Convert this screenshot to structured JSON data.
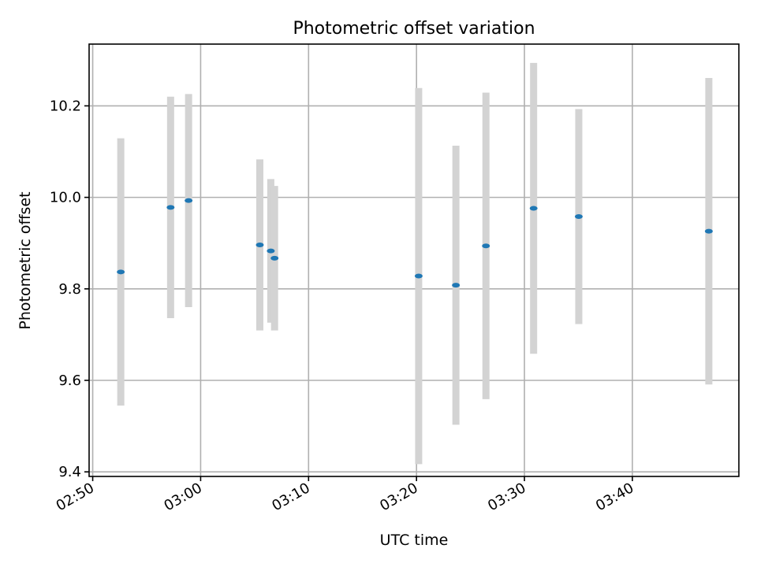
{
  "chart_data": {
    "type": "scatter",
    "title": "Photometric offset variation",
    "xlabel": "UTC time",
    "ylabel": "Photometric offset",
    "ylim": [
      9.39,
      10.335
    ],
    "xlim": [
      "02:49:40",
      "03:49:52"
    ],
    "grid": true,
    "colors": {
      "marker": "#1f77b4",
      "errorbar": "#d3d3d3"
    },
    "x_ticks": [
      "02:50",
      "03:00",
      "03:10",
      "03:20",
      "03:30",
      "03:40"
    ],
    "y_ticks": [
      "9.4",
      "9.6",
      "9.8",
      "10.0",
      "10.2"
    ],
    "points": [
      {
        "time": "02:52:36",
        "y": 9.837,
        "yerr": 0.292
      },
      {
        "time": "02:57:13",
        "y": 9.978,
        "yerr": 0.242
      },
      {
        "time": "02:58:53",
        "y": 9.993,
        "yerr": 0.233
      },
      {
        "time": "03:05:29",
        "y": 9.896,
        "yerr": 0.187
      },
      {
        "time": "03:06:30",
        "y": 9.883,
        "yerr": 0.157
      },
      {
        "time": "03:06:51",
        "y": 9.867,
        "yerr": 0.158
      },
      {
        "time": "03:20:12",
        "y": 9.828,
        "yerr": 0.411
      },
      {
        "time": "03:23:39",
        "y": 9.808,
        "yerr": 0.305
      },
      {
        "time": "03:26:26",
        "y": 9.894,
        "yerr": 0.335
      },
      {
        "time": "03:30:51",
        "y": 9.976,
        "yerr": 0.318
      },
      {
        "time": "03:35:02",
        "y": 9.958,
        "yerr": 0.235
      },
      {
        "time": "03:47:05",
        "y": 9.926,
        "yerr": 0.335
      }
    ]
  }
}
